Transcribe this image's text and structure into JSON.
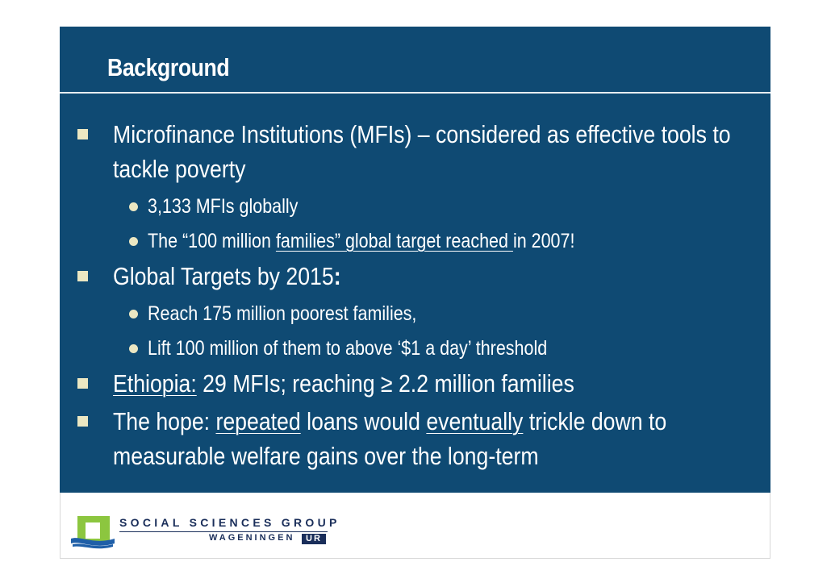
{
  "slide": {
    "title": "Background",
    "colors": {
      "panel": "#0f4a73",
      "bullet": "#ebe7c2",
      "text": "#ffffff"
    },
    "bullets": [
      {
        "text_a": "Microfinance Institutions (MFIs) – considered as effective tools to tackle poverty",
        "subs": [
          {
            "text_a": "3,133 MFIs globally"
          },
          {
            "text_a": "The “100 million ",
            "text_u": "families” global target reached ",
            "text_b": "in 2007!"
          }
        ]
      },
      {
        "text_a": "Global Targets by 2015",
        "text_bold": ":",
        "subs": [
          {
            "text_a": "Reach 175 million poorest families,"
          },
          {
            "text_a": "Lift 100 million of them to above ‘$1 a day’ threshold"
          }
        ]
      },
      {
        "text_u": "Ethiopia:",
        "text_b": " 29 MFIs; reaching ≥ 2.2 million families"
      },
      {
        "text_a": "The hope: ",
        "text_u1": "repeated",
        "text_b": " loans would ",
        "text_u2": "eventually",
        "text_c": " trickle down to measurable welfare gains over the long-term"
      }
    ]
  },
  "footer": {
    "logo_line1": "SOCIAL SCIENCES GROUP",
    "logo_line2": "WAGENINGEN",
    "logo_ur": "UR",
    "logo_icon": "wageningen-logo-mark"
  }
}
